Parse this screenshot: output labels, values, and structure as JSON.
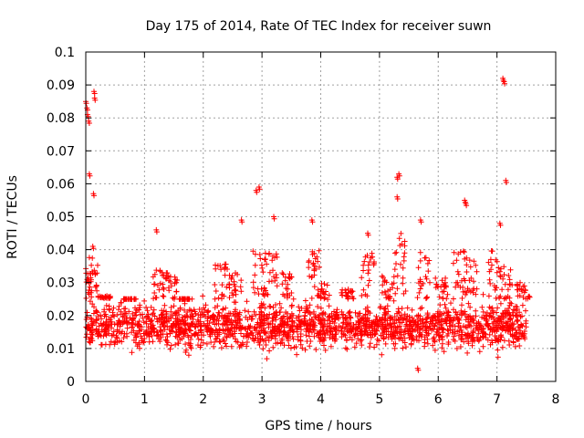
{
  "chart_data": {
    "type": "scatter",
    "title": "Day 175 of 2014, Rate Of TEC Index for receiver suwn",
    "xlabel": "GPS time / hours",
    "ylabel": "ROTI / TECUs",
    "xlim": [
      0,
      8
    ],
    "ylim": [
      0,
      0.1
    ],
    "x_ticks": [
      "0",
      "1",
      "2",
      "3",
      "4",
      "5",
      "6",
      "7",
      "8"
    ],
    "y_ticks": [
      "0",
      "0.01",
      "0.02",
      "0.03",
      "0.04",
      "0.05",
      "0.06",
      "0.07",
      "0.08",
      "0.09",
      "0.1"
    ],
    "grid": true,
    "marker": "+",
    "color": "#ff0000",
    "series": [
      {
        "name": "suwn",
        "x_start": 0.0,
        "x_end": 7.5,
        "typical_range": [
          0.006,
          0.025
        ],
        "outliers": [
          [
            0.0,
            0.085
          ],
          [
            0.02,
            0.083
          ],
          [
            0.03,
            0.081
          ],
          [
            0.05,
            0.079
          ],
          [
            0.06,
            0.063
          ],
          [
            0.14,
            0.088
          ],
          [
            0.15,
            0.086
          ],
          [
            0.13,
            0.057
          ],
          [
            0.12,
            0.041
          ],
          [
            1.2,
            0.046
          ],
          [
            2.65,
            0.049
          ],
          [
            2.9,
            0.058
          ],
          [
            2.95,
            0.059
          ],
          [
            3.2,
            0.05
          ],
          [
            3.85,
            0.049
          ],
          [
            4.8,
            0.045
          ],
          [
            5.3,
            0.062
          ],
          [
            5.33,
            0.063
          ],
          [
            5.3,
            0.056
          ],
          [
            5.7,
            0.049
          ],
          [
            6.45,
            0.055
          ],
          [
            6.47,
            0.054
          ],
          [
            7.05,
            0.048
          ],
          [
            7.1,
            0.092
          ],
          [
            7.12,
            0.091
          ],
          [
            7.15,
            0.061
          ],
          [
            5.65,
            0.004
          ]
        ],
        "bursts": [
          [
            0.02,
            0.034
          ],
          [
            0.1,
            0.038
          ],
          [
            0.32,
            0.026
          ],
          [
            0.75,
            0.025
          ],
          [
            1.25,
            0.035
          ],
          [
            1.45,
            0.033
          ],
          [
            1.7,
            0.025
          ],
          [
            2.3,
            0.036
          ],
          [
            2.55,
            0.033
          ],
          [
            2.95,
            0.04
          ],
          [
            3.15,
            0.04
          ],
          [
            3.45,
            0.033
          ],
          [
            3.9,
            0.04
          ],
          [
            4.05,
            0.03
          ],
          [
            4.45,
            0.028
          ],
          [
            4.8,
            0.04
          ],
          [
            5.15,
            0.032
          ],
          [
            5.35,
            0.045
          ],
          [
            5.75,
            0.04
          ],
          [
            6.05,
            0.032
          ],
          [
            6.35,
            0.04
          ],
          [
            6.55,
            0.038
          ],
          [
            6.95,
            0.04
          ],
          [
            7.15,
            0.035
          ],
          [
            7.45,
            0.03
          ]
        ]
      }
    ]
  }
}
